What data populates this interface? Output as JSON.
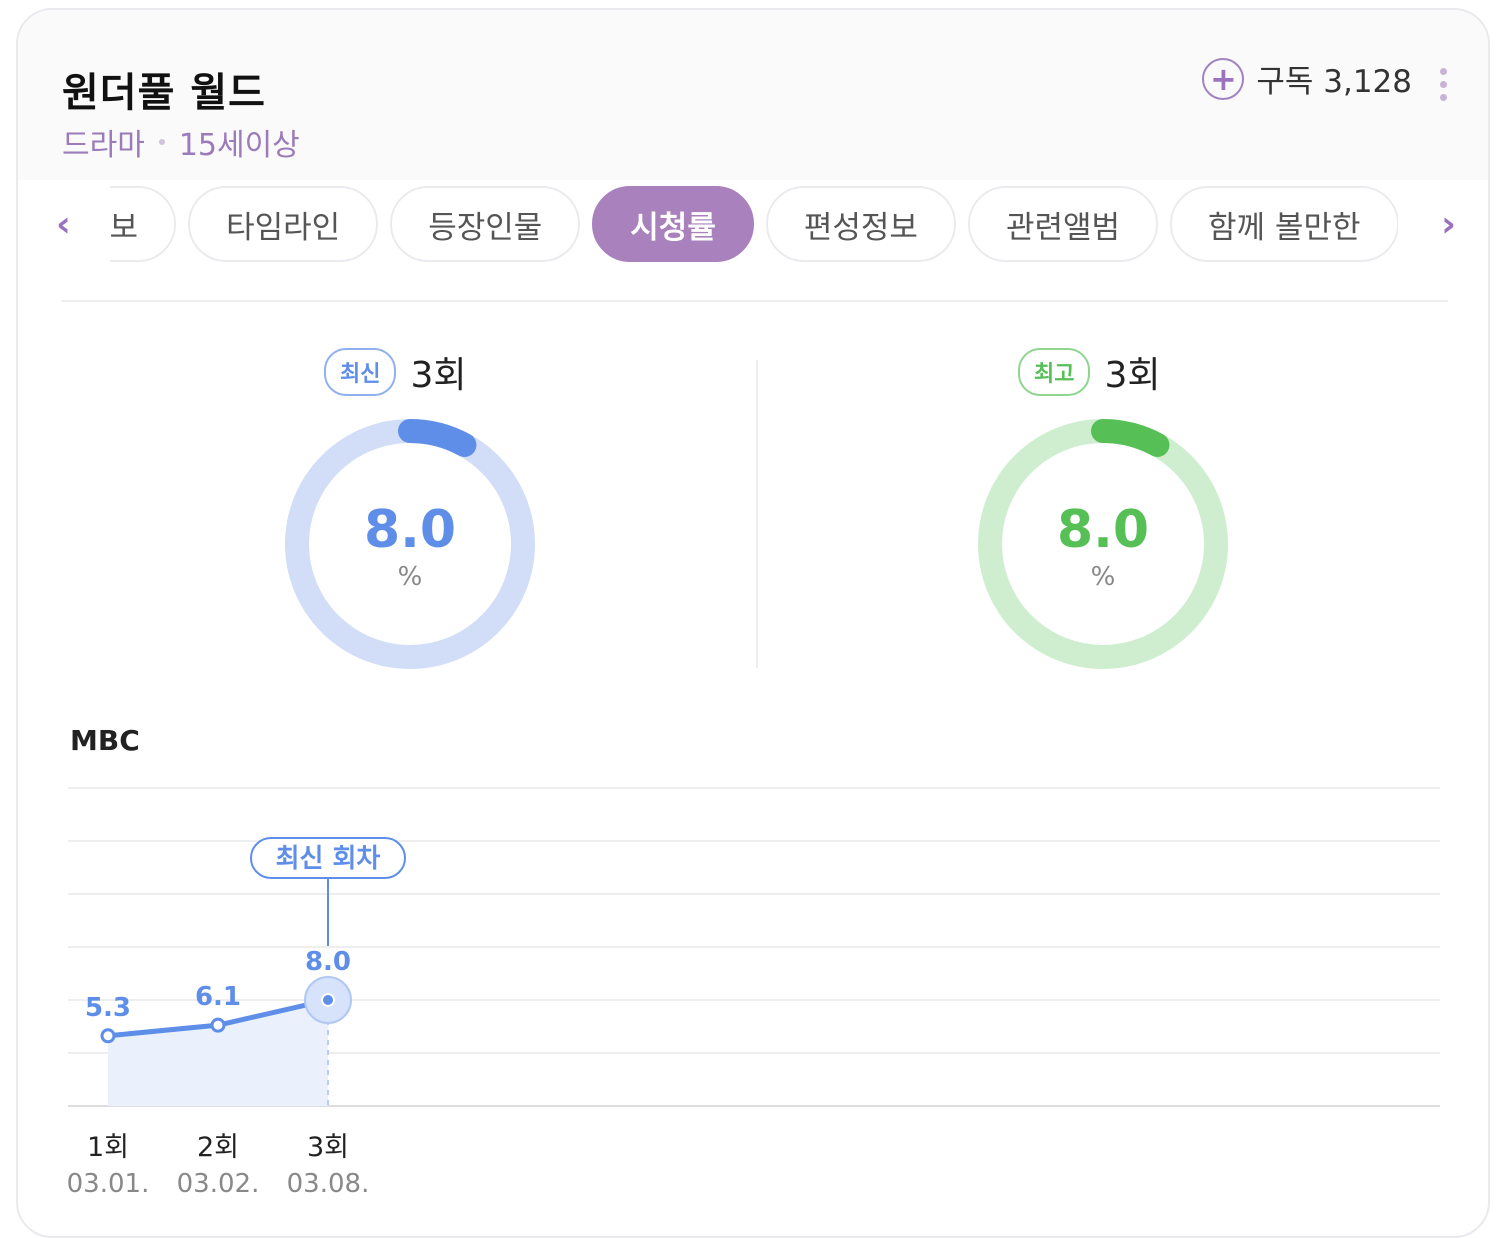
{
  "program": {
    "title": "원더풀 월드",
    "genre": "드라마",
    "rating": "15세이상"
  },
  "subscribe": {
    "label": "구독 3,128"
  },
  "tabs": [
    {
      "label": "회차정보",
      "active": false
    },
    {
      "label": "타임라인",
      "active": false
    },
    {
      "label": "등장인물",
      "active": false
    },
    {
      "label": "시청률",
      "active": true
    },
    {
      "label": "편성정보",
      "active": false
    },
    {
      "label": "관련앨범",
      "active": false
    },
    {
      "label": "함께 볼만한",
      "active": false
    }
  ],
  "summary": {
    "latest": {
      "badge": "최신",
      "episode": "3회",
      "value": "8.0",
      "unit": "%",
      "fraction": 0.08,
      "color": "#5e8ee8",
      "track": "#d2def8"
    },
    "best": {
      "badge": "최고",
      "episode": "3회",
      "value": "8.0",
      "unit": "%",
      "fraction": 0.08,
      "color": "#56c056",
      "track": "#cfeecf"
    }
  },
  "chart_data": {
    "type": "line",
    "title": "MBC",
    "categories": [
      "1회",
      "2회",
      "3회"
    ],
    "dates": [
      "03.01.",
      "03.02.",
      "03.08."
    ],
    "values": [
      5.3,
      6.1,
      8.0
    ],
    "value_labels": [
      "5.3",
      "6.1",
      "8.0"
    ],
    "ylim": [
      0,
      24
    ],
    "grid": true,
    "annotation": {
      "label": "최신 회차",
      "index": 2
    },
    "color": "#5e8ee8"
  }
}
